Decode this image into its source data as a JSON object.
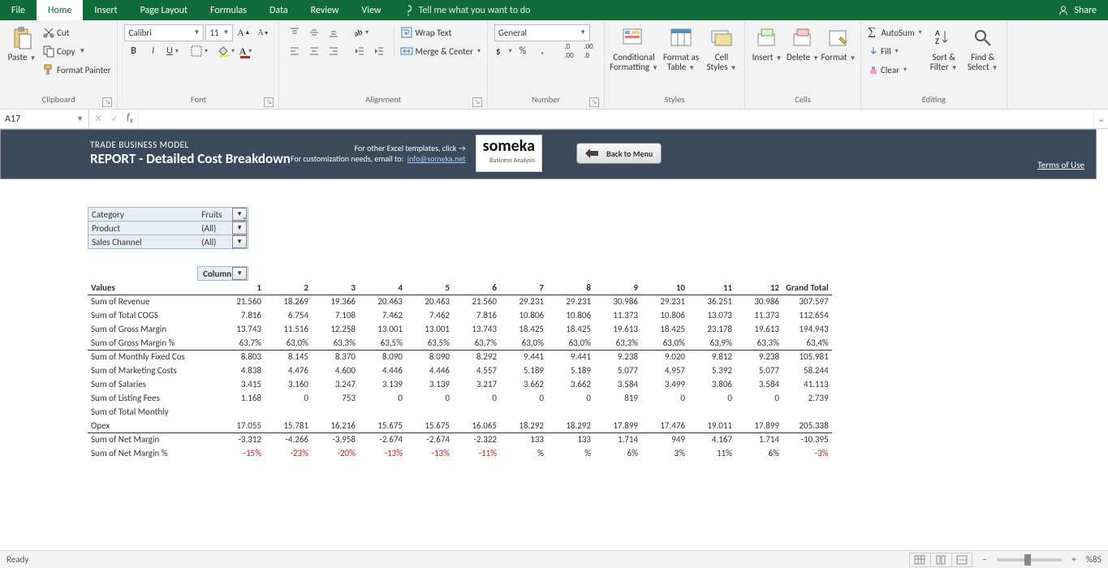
{
  "tabs": [
    "File",
    "Home",
    "Insert",
    "Page Layout",
    "Formulas",
    "Data",
    "Review",
    "View"
  ],
  "tellme": "Tell me what you want to do",
  "share": "Share",
  "ribbon": {
    "clipboard": {
      "label": "Clipboard",
      "paste": "Paste",
      "cut": "Cut",
      "copy": "Copy",
      "fp": "Format Painter"
    },
    "font": {
      "label": "Font",
      "name": "Calibri",
      "size": "11"
    },
    "alignment": {
      "label": "Alignment",
      "wrap": "Wrap Text",
      "merge": "Merge & Center"
    },
    "number": {
      "label": "Number",
      "format": "General"
    },
    "styles": {
      "label": "Styles",
      "cond": "Conditional Formatting",
      "table": "Format as Table",
      "cell": "Cell Styles"
    },
    "cells": {
      "label": "Cells",
      "insert": "Insert",
      "delete": "Delete",
      "format": "Format"
    },
    "editing": {
      "label": "Editing",
      "autosum": "AutoSum",
      "fill": "Fill",
      "clear": "Clear",
      "sort": "Sort & Filter",
      "find": "Find & Select"
    }
  },
  "namebox": "A17",
  "report": {
    "subtitle": "TRADE BUSINESS MODEL",
    "title": "REPORT - Detailed Cost Breakdown",
    "notice": "For other Excel templates, click →",
    "custom": "For customization needs, email to:",
    "email": "info@someka.net",
    "logo": "someka",
    "logosub": "Business Analysis",
    "back": "Back to Menu",
    "terms": "Terms of Use"
  },
  "filters": [
    {
      "label": "Category",
      "value": "Fruits",
      "funnel": true
    },
    {
      "label": "Product",
      "value": "(All)",
      "funnel": false
    },
    {
      "label": "Sales Channel",
      "value": "(All)",
      "funnel": false
    }
  ],
  "pivot": {
    "colhdr": "Column",
    "valhdr": "Values",
    "gt": "Grand Total",
    "cols": [
      "1",
      "2",
      "3",
      "4",
      "5",
      "6",
      "7",
      "8",
      "9",
      "10",
      "11",
      "12"
    ],
    "rows": [
      {
        "label": "Sum of Revenue",
        "v": [
          "21.560",
          "18.269",
          "19.366",
          "20.463",
          "20.463",
          "21.560",
          "29.231",
          "29.231",
          "30.986",
          "29.231",
          "36.251",
          "30.986"
        ],
        "gt": "307.597",
        "cls": ""
      },
      {
        "label": "Sum of Total COGS",
        "v": [
          "7.816",
          "6.754",
          "7.108",
          "7.462",
          "7.462",
          "7.816",
          "10.806",
          "10.806",
          "11.373",
          "10.806",
          "13.073",
          "11.373"
        ],
        "gt": "112.654",
        "cls": ""
      },
      {
        "label": "Sum of Gross Margin",
        "v": [
          "13.743",
          "11.516",
          "12.258",
          "13.001",
          "13.001",
          "13.743",
          "18.425",
          "18.425",
          "19.613",
          "18.425",
          "23.178",
          "19.613"
        ],
        "gt": "194.943",
        "cls": ""
      },
      {
        "label": "Sum of Gross Margin %",
        "v": [
          "63,7%",
          "63,0%",
          "63,3%",
          "63,5%",
          "63,5%",
          "63,7%",
          "63,0%",
          "63,0%",
          "63,3%",
          "63,0%",
          "63,9%",
          "63,3%"
        ],
        "gt": "63,4%",
        "cls": "section"
      },
      {
        "label": "Sum of Monthly Fixed Cos",
        "v": [
          "8.803",
          "8.145",
          "8.370",
          "8.090",
          "8.090",
          "8.292",
          "9.441",
          "9.441",
          "9.238",
          "9.020",
          "9.812",
          "9.238"
        ],
        "gt": "105.981",
        "cls": ""
      },
      {
        "label": "Sum of Marketing Costs",
        "v": [
          "4.838",
          "4.476",
          "4.600",
          "4.446",
          "4.446",
          "4.557",
          "5.189",
          "5.189",
          "5.077",
          "4.957",
          "5.392",
          "5.077"
        ],
        "gt": "58.244",
        "cls": ""
      },
      {
        "label": "Sum of Salaries",
        "v": [
          "3.415",
          "3.160",
          "3.247",
          "3.139",
          "3.139",
          "3.217",
          "3.662",
          "3.662",
          "3.584",
          "3.499",
          "3.806",
          "3.584"
        ],
        "gt": "41.113",
        "cls": ""
      },
      {
        "label": "Sum of Listing Fees",
        "v": [
          "1.168",
          "0",
          "753",
          "0",
          "0",
          "0",
          "0",
          "0",
          "819",
          "0",
          "0",
          "0"
        ],
        "gt": "2.739",
        "cls": ""
      },
      {
        "label": "Sum of Total Monthly",
        "v": [
          "",
          "",
          "",
          "",
          "",
          "",
          "",
          "",
          "",
          "",
          "",
          ""
        ],
        "gt": "",
        "cls": "labelonly"
      },
      {
        "label": "Opex",
        "v": [
          "17.055",
          "15.781",
          "16.216",
          "15.675",
          "15.675",
          "16.065",
          "18.292",
          "18.292",
          "17.899",
          "17.476",
          "19.011",
          "17.899"
        ],
        "gt": "205.338",
        "cls": "section"
      },
      {
        "label": "Sum of Net Margin",
        "v": [
          "-3.312",
          "-4.266",
          "-3.958",
          "-2.674",
          "-2.674",
          "-2.322",
          "133",
          "133",
          "1.714",
          "949",
          "4.167",
          "1.714"
        ],
        "gt": "-10.395",
        "cls": ""
      },
      {
        "label": "Sum of Net Margin %",
        "v": [
          "-15%",
          "-23%",
          "-20%",
          "-13%",
          "-13%",
          "-11%",
          "%",
          "%",
          "6%",
          "3%",
          "11%",
          "6%"
        ],
        "gt": "-3%",
        "cls": "red"
      }
    ]
  },
  "status": {
    "ready": "Ready",
    "zoom": "%85"
  }
}
